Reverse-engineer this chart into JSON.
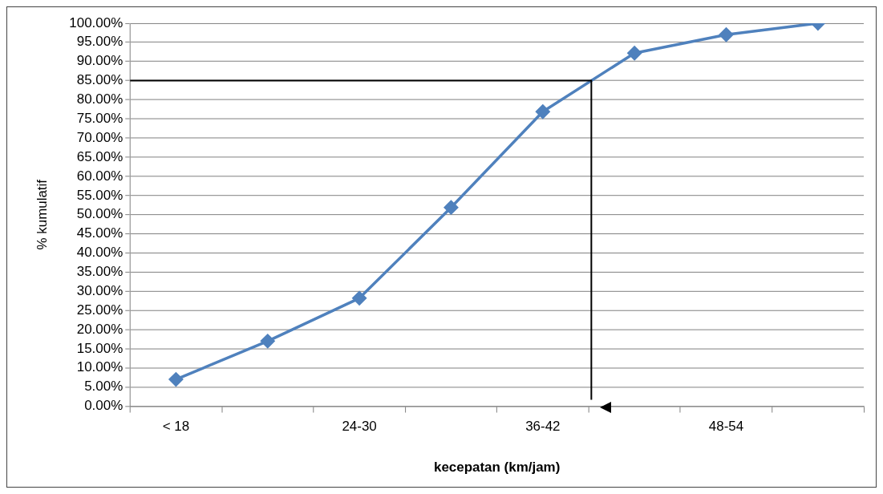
{
  "chart_data": {
    "type": "line",
    "xlabel": "kecepatan (km/jam)",
    "ylabel": "% kumulatif",
    "categories": [
      "< 18",
      null,
      "24-30",
      null,
      "36-42",
      null,
      "48-54",
      null
    ],
    "series": [
      {
        "color": "#4f81bd",
        "values": [
          7,
          17,
          28.2,
          51.9,
          76.9,
          92.2,
          97,
          100
        ]
      }
    ],
    "ylim": [
      0,
      100
    ],
    "yticks": [
      {
        "value": 0,
        "label": "0.00%"
      },
      {
        "value": 5,
        "label": "5.00%"
      },
      {
        "value": 10,
        "label": "10.00%"
      },
      {
        "value": 15,
        "label": "15.00%"
      },
      {
        "value": 20,
        "label": "20.00%"
      },
      {
        "value": 25,
        "label": "25.00%"
      },
      {
        "value": 30,
        "label": "30.00%"
      },
      {
        "value": 35,
        "label": "35.00%"
      },
      {
        "value": 40,
        "label": "40.00%"
      },
      {
        "value": 45,
        "label": "45.00%"
      },
      {
        "value": 50,
        "label": "50.00%"
      },
      {
        "value": 55,
        "label": "55.00%"
      },
      {
        "value": 60,
        "label": "60.00%"
      },
      {
        "value": 65,
        "label": "65.00%"
      },
      {
        "value": 70,
        "label": "70.00%"
      },
      {
        "value": 75,
        "label": "75.00%"
      },
      {
        "value": 80,
        "label": "80.00%"
      },
      {
        "value": 85,
        "label": "85.00%"
      },
      {
        "value": 90,
        "label": "90.00%"
      },
      {
        "value": 95,
        "label": "95.00%"
      },
      {
        "value": 100,
        "label": "100.00%"
      }
    ],
    "ref_lines": [
      {
        "axis": "y",
        "value": 85,
        "color": "#000000"
      }
    ],
    "grid": "y",
    "marker": "diamond",
    "line_style": "solid"
  }
}
